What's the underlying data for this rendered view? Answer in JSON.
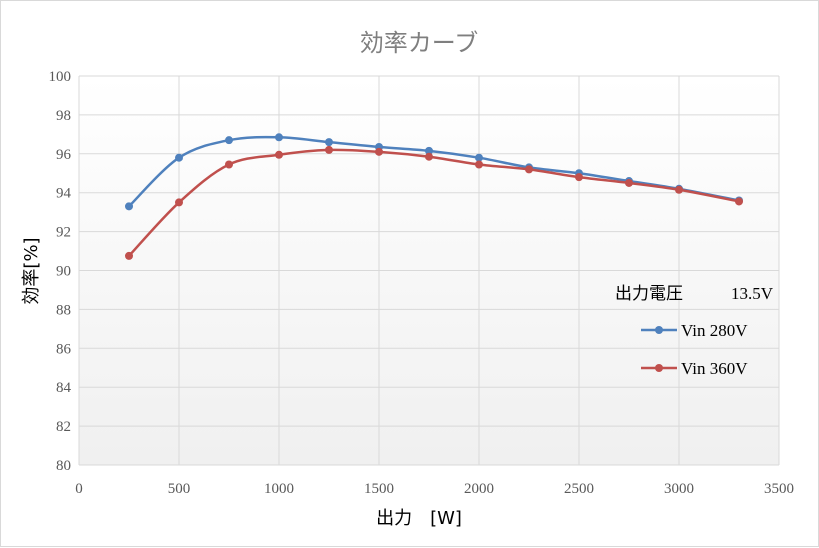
{
  "chart_data": {
    "type": "line",
    "title": "効率カーブ",
    "xlabel": "出力　[W]",
    "ylabel": "効率[%]",
    "xlim": [
      0,
      3500
    ],
    "ylim": [
      80,
      100
    ],
    "x_ticks": [
      "0",
      "500",
      "1000",
      "1500",
      "2000",
      "2500",
      "3000",
      "3500"
    ],
    "y_ticks": [
      "80",
      "82",
      "84",
      "86",
      "88",
      "90",
      "92",
      "94",
      "96",
      "98",
      "100"
    ],
    "grid": true,
    "legend_position": "right",
    "annotation": {
      "label": "出力電圧",
      "value": "13.5V"
    },
    "x": [
      250,
      500,
      750,
      1000,
      1250,
      1500,
      1750,
      2000,
      2250,
      2500,
      2750,
      3000,
      3300
    ],
    "series": [
      {
        "name": "Vin 280V",
        "color": "#4f81bd",
        "values": [
          93.3,
          95.8,
          96.7,
          96.85,
          96.6,
          96.35,
          96.15,
          95.8,
          95.3,
          95.0,
          94.6,
          94.2,
          93.6
        ]
      },
      {
        "name": "Vin 360V",
        "color": "#c0504d",
        "values": [
          90.75,
          93.5,
          95.45,
          95.95,
          96.2,
          96.1,
          95.85,
          95.45,
          95.2,
          94.8,
          94.5,
          94.15,
          93.55
        ]
      }
    ]
  }
}
